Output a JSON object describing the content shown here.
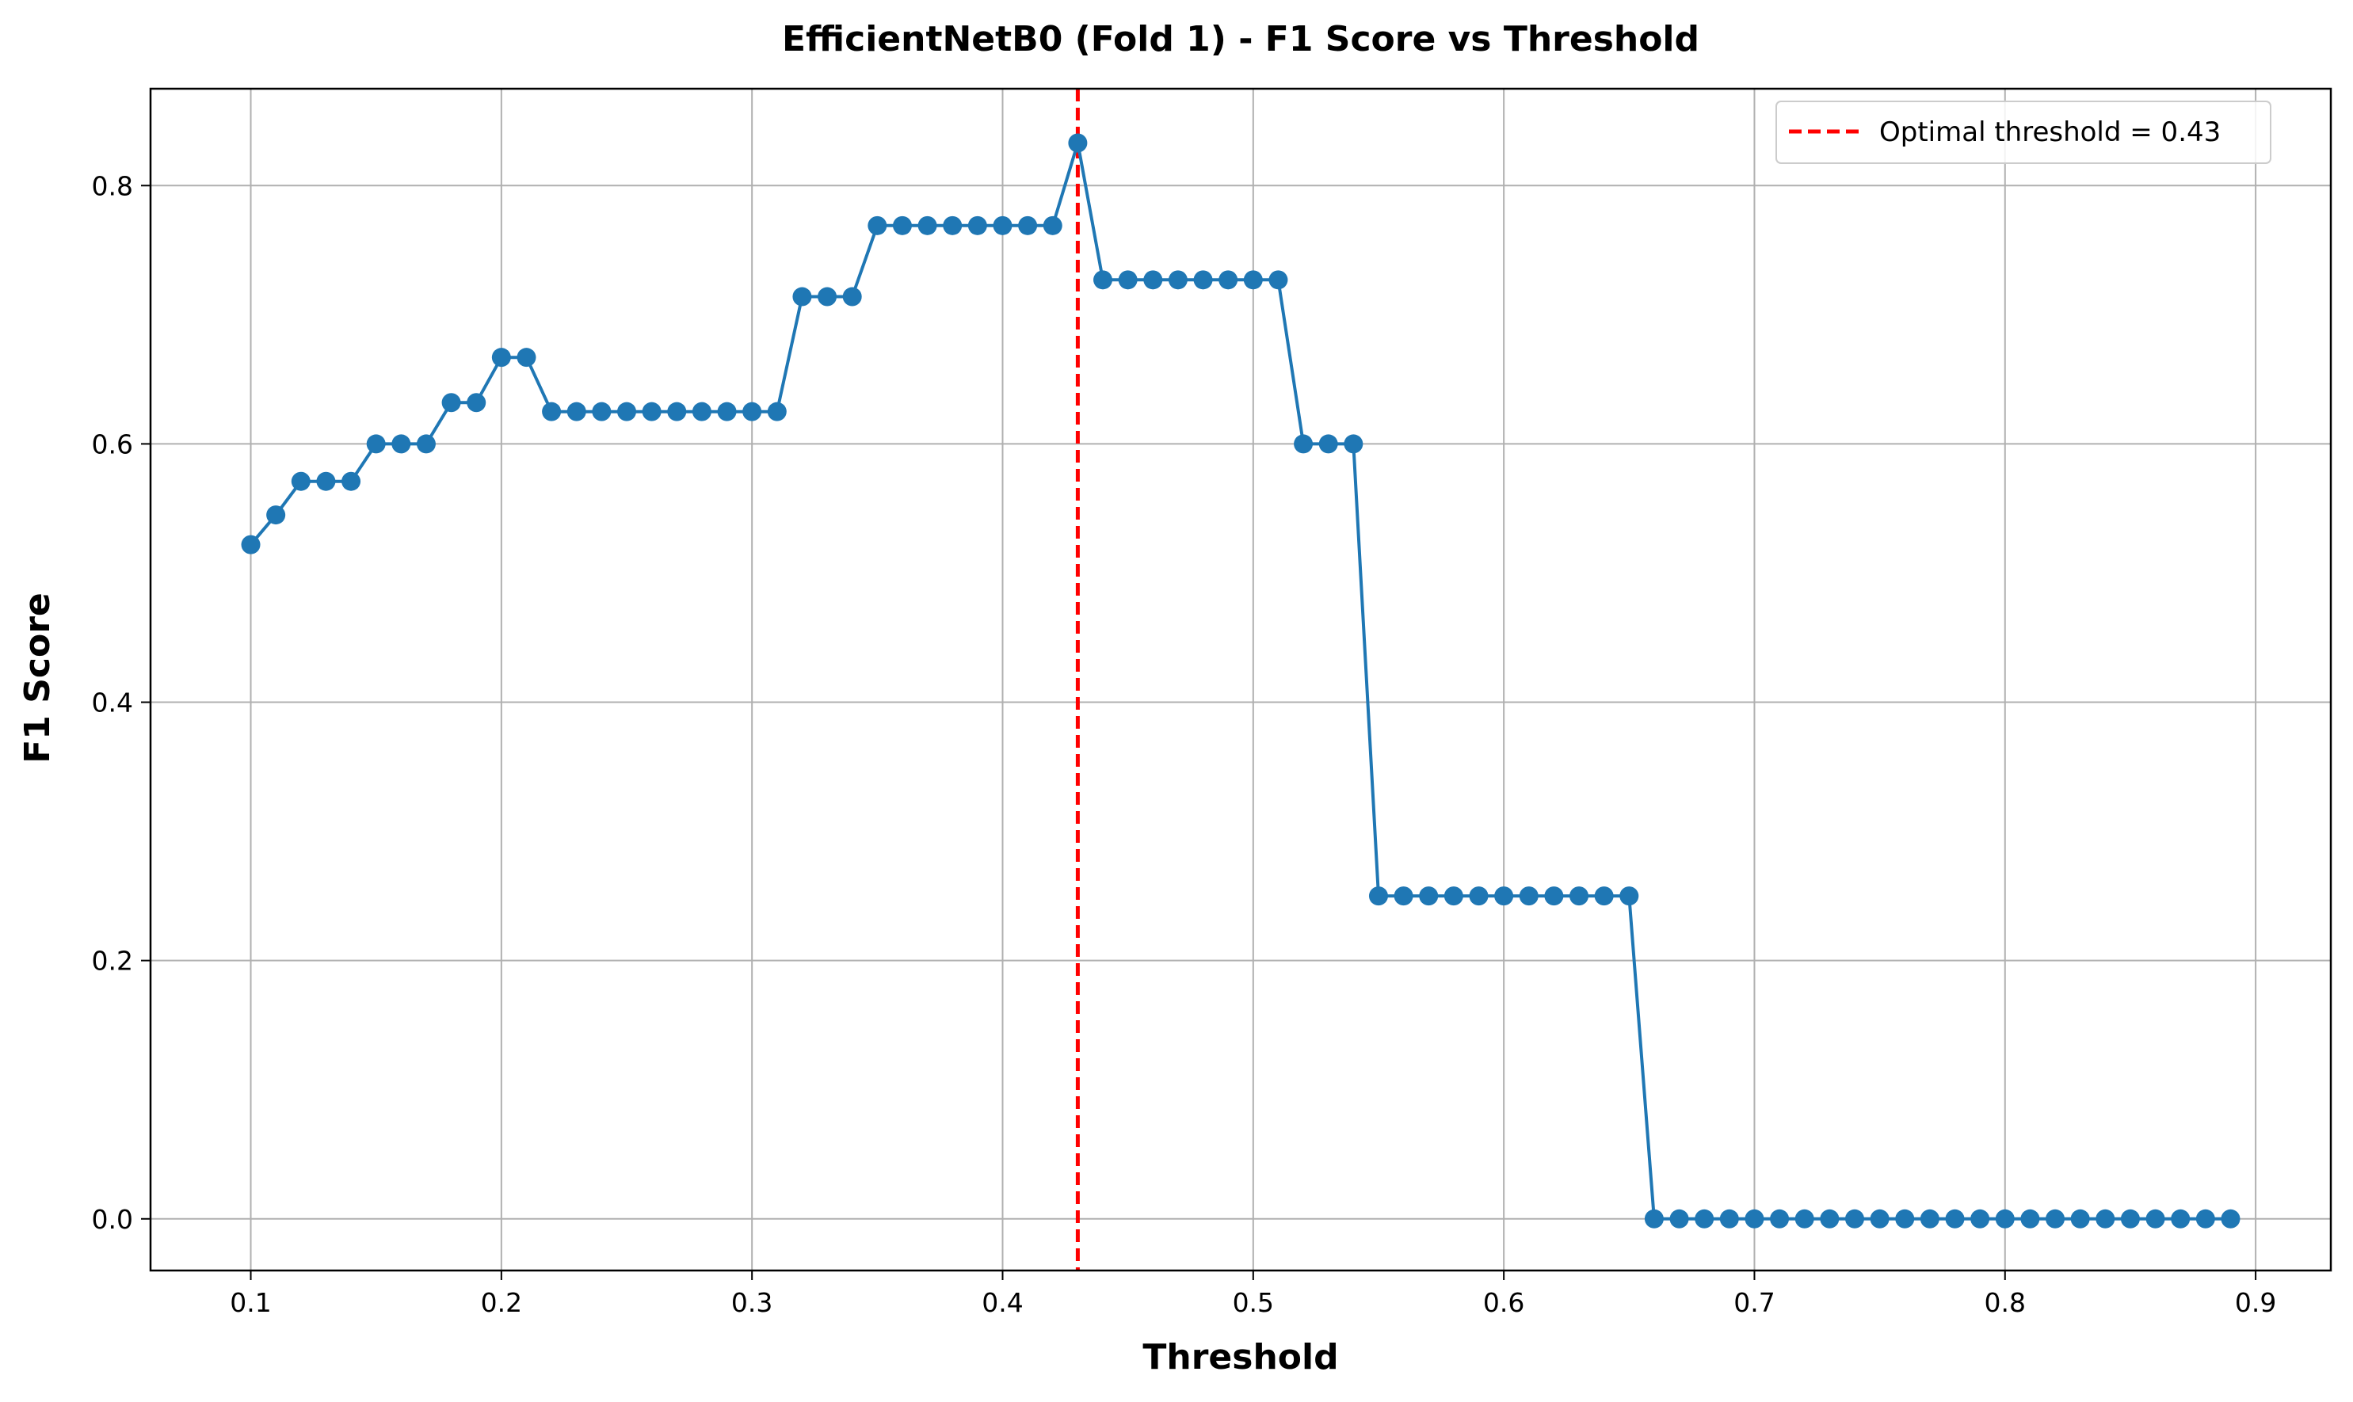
{
  "chart_data": {
    "type": "line",
    "title": "EfficientNetB0 (Fold 1) - F1 Score vs Threshold",
    "xlabel": "Threshold",
    "ylabel": "F1 Score",
    "xlim": [
      0.06,
      0.93
    ],
    "ylim": [
      -0.04,
      0.875
    ],
    "xticks": [
      0.1,
      0.2,
      0.3,
      0.4,
      0.5,
      0.6,
      0.7,
      0.8,
      0.9
    ],
    "xtick_labels": [
      "0.1",
      "0.2",
      "0.3",
      "0.4",
      "0.5",
      "0.6",
      "0.7",
      "0.8",
      "0.9"
    ],
    "yticks": [
      0.0,
      0.2,
      0.4,
      0.6,
      0.8
    ],
    "ytick_labels": [
      "0.0",
      "0.2",
      "0.4",
      "0.6",
      "0.8"
    ],
    "grid": true,
    "legend_position": "top-right",
    "series": [
      {
        "color": "#1f77b4",
        "marker": "circle",
        "x": [
          0.1,
          0.11,
          0.12,
          0.13,
          0.14,
          0.15,
          0.16,
          0.17,
          0.18,
          0.19,
          0.2,
          0.21,
          0.22,
          0.23,
          0.24,
          0.25,
          0.26,
          0.27,
          0.28,
          0.29,
          0.3,
          0.31,
          0.32,
          0.33,
          0.34,
          0.35,
          0.36,
          0.37,
          0.38,
          0.39,
          0.4,
          0.41,
          0.42,
          0.43,
          0.44,
          0.45,
          0.46,
          0.47,
          0.48,
          0.49,
          0.5,
          0.51,
          0.52,
          0.53,
          0.54,
          0.55,
          0.56,
          0.57,
          0.58,
          0.59,
          0.6,
          0.61,
          0.62,
          0.63,
          0.64,
          0.65,
          0.66,
          0.67,
          0.68,
          0.69,
          0.7,
          0.71,
          0.72,
          0.73,
          0.74,
          0.75,
          0.76,
          0.77,
          0.78,
          0.79,
          0.8,
          0.81,
          0.82,
          0.83,
          0.84,
          0.85,
          0.86,
          0.87,
          0.88,
          0.89
        ],
        "y": [
          0.522,
          0.545,
          0.571,
          0.571,
          0.571,
          0.6,
          0.6,
          0.6,
          0.632,
          0.632,
          0.667,
          0.667,
          0.625,
          0.625,
          0.625,
          0.625,
          0.625,
          0.625,
          0.625,
          0.625,
          0.625,
          0.625,
          0.714,
          0.714,
          0.714,
          0.769,
          0.769,
          0.769,
          0.769,
          0.769,
          0.769,
          0.769,
          0.769,
          0.833,
          0.727,
          0.727,
          0.727,
          0.727,
          0.727,
          0.727,
          0.727,
          0.727,
          0.6,
          0.6,
          0.6,
          0.25,
          0.25,
          0.25,
          0.25,
          0.25,
          0.25,
          0.25,
          0.25,
          0.25,
          0.25,
          0.25,
          0.0,
          0.0,
          0.0,
          0.0,
          0.0,
          0.0,
          0.0,
          0.0,
          0.0,
          0.0,
          0.0,
          0.0,
          0.0,
          0.0,
          0.0,
          0.0,
          0.0,
          0.0,
          0.0,
          0.0,
          0.0,
          0.0,
          0.0,
          0.0
        ]
      }
    ],
    "vline": {
      "x": 0.43,
      "color": "#ff0000",
      "style": "dashed",
      "label": "Optimal threshold = 0.43"
    }
  }
}
